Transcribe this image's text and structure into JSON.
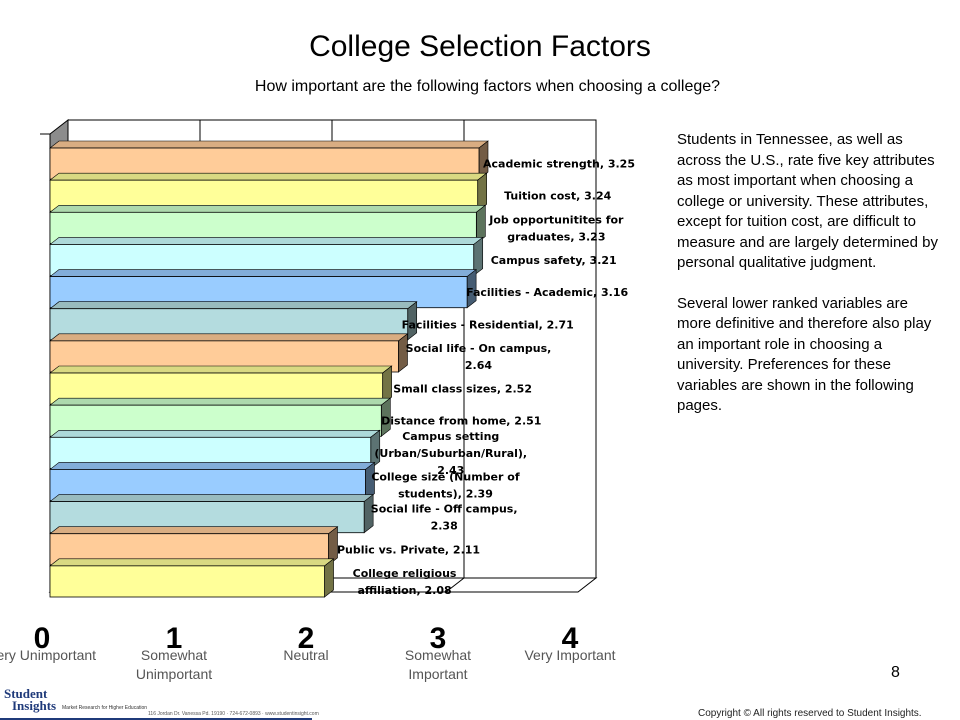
{
  "title": "College Selection Factors",
  "subtitle": "How important are the following factors when choosing a college?",
  "chart_data": {
    "type": "bar",
    "orientation": "horizontal",
    "xlim": [
      0,
      4
    ],
    "xticks": [
      "0",
      "1",
      "2",
      "3",
      "4"
    ],
    "scale_labels": [
      "Very Unimportant",
      "Somewhat Unimportant",
      "Neutral",
      "Somewhat Important",
      "Very Important"
    ],
    "categories": [
      "Academic strength, 3.25",
      "Tuition cost, 3.24",
      "Job opportunitites for graduates, 3.23",
      "Campus safety, 3.21",
      "Facilities - Academic, 3.16",
      "Facilities - Residential, 2.71",
      "Social life - On campus, 2.64",
      "Small class sizes, 2.52",
      "Distance from home, 2.51",
      "Campus setting (Urban/Suburban/Rural), 2.43",
      "College size (Number of students), 2.39",
      "Social life - Off campus, 2.38",
      "Public vs. Private, 2.11",
      "College religious affiliation, 2.08"
    ],
    "values": [
      3.25,
      3.24,
      3.23,
      3.21,
      3.16,
      2.71,
      2.64,
      2.52,
      2.51,
      2.43,
      2.39,
      2.38,
      2.11,
      2.08
    ],
    "colors": [
      "#ffcc99",
      "#ffff99",
      "#ccffcc",
      "#ccffff",
      "#99ccff",
      "#b4dcdf",
      "#ffcc99",
      "#ffff99",
      "#ccffcc",
      "#ccffff",
      "#99ccff",
      "#b4dcdf",
      "#ffcc99",
      "#ffff99"
    ],
    "label_lines": [
      [
        "Academic strength, 3.25"
      ],
      [
        "Tuition cost, 3.24"
      ],
      [
        "Job opportunitites for",
        "graduates, 3.23"
      ],
      [
        "Campus safety, 3.21"
      ],
      [
        "Facilities - Academic, 3.16"
      ],
      [
        "Facilities - Residential, 2.71"
      ],
      [
        "Social life - On campus,",
        "2.64"
      ],
      [
        "Small class sizes, 2.52"
      ],
      [
        "Distance from home, 2.51"
      ],
      [
        "Campus setting",
        "(Urban/Suburban/Rural),",
        "2.43"
      ],
      [
        "College size (Number of",
        "students), 2.39"
      ],
      [
        "Social life - Off campus,",
        "2.38"
      ],
      [
        "Public vs. Private, 2.11"
      ],
      [
        "College religious",
        "affiliation, 2.08"
      ]
    ]
  },
  "notes": {
    "para1": "Students in Tennessee, as well as across the U.S., rate five key attributes as most important when choosing a college or university. These attributes, except for tuition cost, are difficult to measure and are largely determined by personal qualitative judgment.",
    "para2": "Several lower ranked variables are more definitive and therefore also play an important  role in choosing a university. Preferences for these variables are shown in the following pages."
  },
  "page_number": "8",
  "copyright": "Copyright  ©  All rights reserved to Student Insights.",
  "logo": {
    "line1": "Student",
    "line2": "Insights",
    "tagline": "Market Research for Higher Education",
    "contact": "116 Jordan Dr. Vanessa Pd. 19190 · 724-672-0893 · www.studentinsight.com"
  }
}
